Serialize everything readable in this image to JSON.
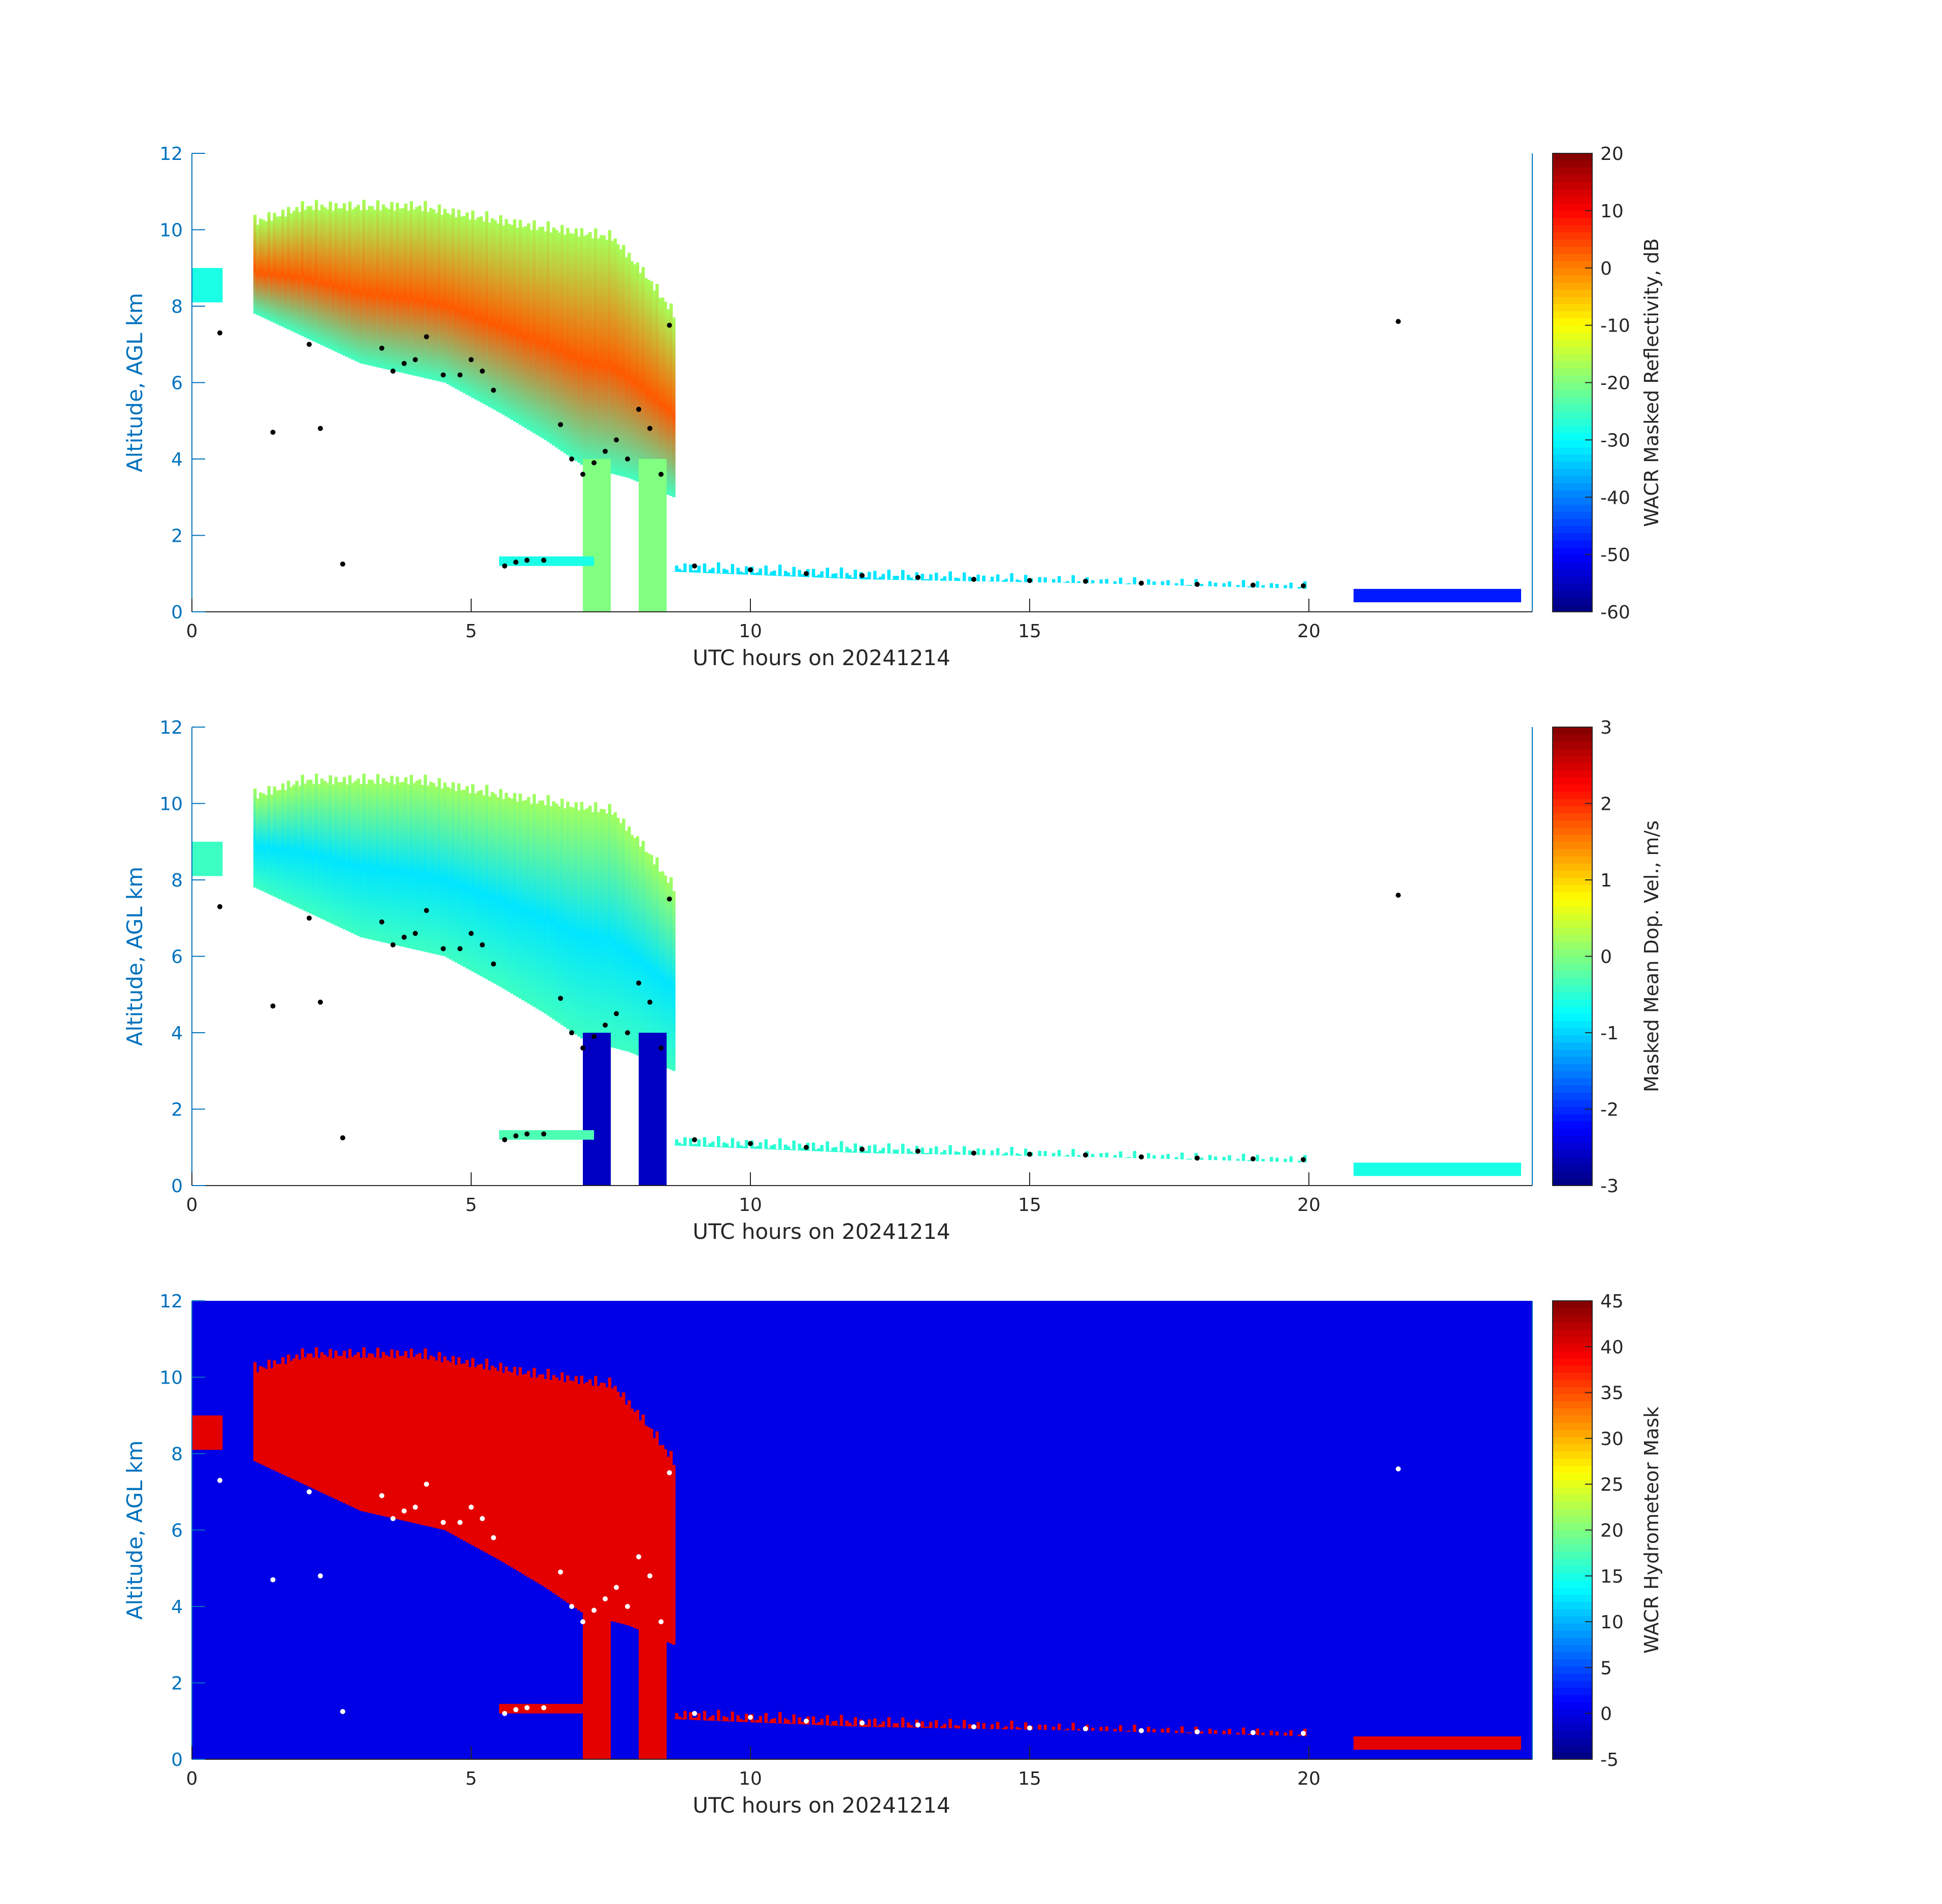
{
  "page": {
    "background": "#ffffff"
  },
  "chart_data": [
    {
      "type": "heatmap",
      "id": "panel-reflectivity",
      "xlabel": "UTC hours on 20241214",
      "ylabel": "Altitude, AGL km",
      "xlim": [
        0,
        24
      ],
      "ylim": [
        0,
        12
      ],
      "xticks": [
        0,
        5,
        10,
        15,
        20
      ],
      "yticks": [
        0,
        2,
        4,
        6,
        8,
        10,
        12
      ],
      "grid": false,
      "axis_color": "#0072bd",
      "colorbar": {
        "label": "WACR Masked Reflectivity, dB",
        "range": [
          -60,
          20
        ],
        "ticks": [
          -60,
          -50,
          -40,
          -30,
          -20,
          -10,
          0,
          10,
          20
        ],
        "colormap": "jet"
      },
      "background_value": null,
      "signal_regions": [
        {
          "x": [
            0.0,
            0.55
          ],
          "base": 8.1,
          "top": 9.0,
          "value": -28
        },
        {
          "x": [
            1.1,
            8.6
          ],
          "base_profile": [
            [
              1.1,
              7.8
            ],
            [
              3.0,
              6.5
            ],
            [
              4.5,
              6.0
            ],
            [
              5.5,
              5.2
            ],
            [
              6.3,
              4.5
            ],
            [
              7.0,
              3.8
            ],
            [
              7.8,
              3.5
            ],
            [
              8.6,
              3.0
            ]
          ],
          "top_profile": [
            [
              1.1,
              10.4
            ],
            [
              2.0,
              10.8
            ],
            [
              4.0,
              10.8
            ],
            [
              6.0,
              10.3
            ],
            [
              7.5,
              10.0
            ],
            [
              8.1,
              9.0
            ],
            [
              8.6,
              8.0
            ]
          ],
          "core_value": 3
        },
        {
          "x": [
            7.0,
            7.5
          ],
          "base": 0.0,
          "top": 4.0,
          "value": -20
        },
        {
          "x": [
            8.0,
            8.5
          ],
          "base": 0.0,
          "top": 4.0,
          "value": -20
        },
        {
          "x": [
            5.5,
            7.2
          ],
          "base": 1.2,
          "top": 1.45,
          "value": -28
        },
        {
          "x": [
            8.6,
            20.0
          ],
          "base_profile": [
            [
              8.6,
              1.05
            ],
            [
              12.0,
              0.85
            ],
            [
              16.0,
              0.75
            ],
            [
              20.0,
              0.6
            ]
          ],
          "top_profile": [
            [
              8.6,
              1.35
            ],
            [
              12.0,
              1.15
            ],
            [
              16.0,
              0.95
            ],
            [
              20.0,
              0.8
            ]
          ],
          "value": -32
        },
        {
          "x": [
            20.8,
            23.8
          ],
          "base": 0.25,
          "top": 0.6,
          "value": -48
        }
      ],
      "cloud_base_points": {
        "color": "#000000",
        "x": [
          0.5,
          1.45,
          2.1,
          2.3,
          2.7,
          3.4,
          3.6,
          3.8,
          4.0,
          4.2,
          4.5,
          4.8,
          5.0,
          5.2,
          5.4,
          5.6,
          5.8,
          6.0,
          6.3,
          6.6,
          6.8,
          7.0,
          7.2,
          7.4,
          7.6,
          7.8,
          8.0,
          8.2,
          8.4,
          8.55,
          9.0,
          10.0,
          11.0,
          12.0,
          13.0,
          14.0,
          15.0,
          16.0,
          17.0,
          18.0,
          19.0,
          19.9,
          21.6
        ],
        "y": [
          7.3,
          4.7,
          7.0,
          4.8,
          1.25,
          6.9,
          6.3,
          6.5,
          6.6,
          7.2,
          6.2,
          6.2,
          6.6,
          6.3,
          5.8,
          1.2,
          1.3,
          1.35,
          1.35,
          4.9,
          4.0,
          3.6,
          3.9,
          4.2,
          4.5,
          4.0,
          5.3,
          4.8,
          3.6,
          7.5,
          1.2,
          1.1,
          1.0,
          0.95,
          0.9,
          0.85,
          0.82,
          0.8,
          0.75,
          0.72,
          0.7,
          0.68,
          7.6
        ]
      }
    },
    {
      "type": "heatmap",
      "id": "panel-velocity",
      "xlabel": "UTC hours on 20241214",
      "ylabel": "Altitude, AGL km",
      "xlim": [
        0,
        24
      ],
      "ylim": [
        0,
        12
      ],
      "xticks": [
        0,
        5,
        10,
        15,
        20
      ],
      "yticks": [
        0,
        2,
        4,
        6,
        8,
        10,
        12
      ],
      "grid": false,
      "axis_color": "#0072bd",
      "colorbar": {
        "label": "Masked Mean Dop. Vel., m/s",
        "range": [
          -3,
          3
        ],
        "ticks": [
          -3,
          -2,
          -1,
          0,
          1,
          2,
          3
        ],
        "colormap": "jet"
      },
      "background_value": null,
      "signal_regions": [
        {
          "x": [
            0.0,
            0.55
          ],
          "base": 8.1,
          "top": 9.0,
          "value": -0.4
        },
        {
          "x": [
            1.1,
            8.6
          ],
          "base_profile": [
            [
              1.1,
              7.8
            ],
            [
              3.0,
              6.5
            ],
            [
              4.5,
              6.0
            ],
            [
              5.5,
              5.2
            ],
            [
              6.3,
              4.5
            ],
            [
              7.0,
              3.8
            ],
            [
              7.8,
              3.5
            ],
            [
              8.6,
              3.0
            ]
          ],
          "top_profile": [
            [
              1.1,
              10.4
            ],
            [
              2.0,
              10.8
            ],
            [
              4.0,
              10.8
            ],
            [
              6.0,
              10.3
            ],
            [
              7.5,
              10.0
            ],
            [
              8.1,
              9.0
            ],
            [
              8.6,
              8.0
            ]
          ],
          "core_value": -0.9
        },
        {
          "x": [
            7.0,
            7.5
          ],
          "base": 0.0,
          "top": 4.0,
          "value": -2.6
        },
        {
          "x": [
            8.0,
            8.5
          ],
          "base": 0.0,
          "top": 4.0,
          "value": -2.6
        },
        {
          "x": [
            5.5,
            7.2
          ],
          "base": 1.2,
          "top": 1.45,
          "value": -0.3
        },
        {
          "x": [
            8.6,
            20.0
          ],
          "base_profile": [
            [
              8.6,
              1.05
            ],
            [
              12.0,
              0.85
            ],
            [
              16.0,
              0.75
            ],
            [
              20.0,
              0.6
            ]
          ],
          "top_profile": [
            [
              8.6,
              1.35
            ],
            [
              12.0,
              1.15
            ],
            [
              16.0,
              0.95
            ],
            [
              20.0,
              0.8
            ]
          ],
          "value": -0.5
        },
        {
          "x": [
            20.8,
            23.8
          ],
          "base": 0.25,
          "top": 0.6,
          "value": -0.6
        }
      ],
      "cloud_base_points": {
        "color": "#000000",
        "x": [
          0.5,
          1.45,
          2.1,
          2.3,
          2.7,
          3.4,
          3.6,
          3.8,
          4.0,
          4.2,
          4.5,
          4.8,
          5.0,
          5.2,
          5.4,
          5.6,
          5.8,
          6.0,
          6.3,
          6.6,
          6.8,
          7.0,
          7.2,
          7.4,
          7.6,
          7.8,
          8.0,
          8.2,
          8.4,
          8.55,
          9.0,
          10.0,
          11.0,
          12.0,
          13.0,
          14.0,
          15.0,
          16.0,
          17.0,
          18.0,
          19.0,
          19.9,
          21.6
        ],
        "y": [
          7.3,
          4.7,
          7.0,
          4.8,
          1.25,
          6.9,
          6.3,
          6.5,
          6.6,
          7.2,
          6.2,
          6.2,
          6.6,
          6.3,
          5.8,
          1.2,
          1.3,
          1.35,
          1.35,
          4.9,
          4.0,
          3.6,
          3.9,
          4.2,
          4.5,
          4.0,
          5.3,
          4.8,
          3.6,
          7.5,
          1.2,
          1.1,
          1.0,
          0.95,
          0.9,
          0.85,
          0.82,
          0.8,
          0.75,
          0.72,
          0.7,
          0.68,
          7.6
        ]
      }
    },
    {
      "type": "heatmap",
      "id": "panel-mask",
      "xlabel": "UTC hours on 20241214",
      "ylabel": "Altitude, AGL km",
      "xlim": [
        0,
        24
      ],
      "ylim": [
        0,
        12
      ],
      "xticks": [
        0,
        5,
        10,
        15,
        20
      ],
      "yticks": [
        0,
        2,
        4,
        6,
        8,
        10,
        12
      ],
      "grid": false,
      "axis_color": "#0072bd",
      "colorbar": {
        "label": "WACR Hydrometeor Mask",
        "range": [
          -5,
          45
        ],
        "ticks": [
          -5,
          0,
          5,
          10,
          15,
          20,
          25,
          30,
          35,
          40,
          45
        ],
        "colormap": "jet"
      },
      "background_value": 0,
      "signal_regions": [
        {
          "x": [
            0.0,
            0.55
          ],
          "base": 8.1,
          "top": 9.0,
          "value": 40
        },
        {
          "x": [
            1.1,
            8.6
          ],
          "base_profile": [
            [
              1.1,
              7.8
            ],
            [
              3.0,
              6.5
            ],
            [
              4.5,
              6.0
            ],
            [
              5.5,
              5.2
            ],
            [
              6.3,
              4.5
            ],
            [
              7.0,
              3.8
            ],
            [
              7.8,
              3.5
            ],
            [
              8.6,
              3.0
            ]
          ],
          "top_profile": [
            [
              1.1,
              10.4
            ],
            [
              2.0,
              10.8
            ],
            [
              4.0,
              10.8
            ],
            [
              6.0,
              10.3
            ],
            [
              7.5,
              10.0
            ],
            [
              8.1,
              9.0
            ],
            [
              8.6,
              8.0
            ]
          ],
          "core_value": 40
        },
        {
          "x": [
            7.0,
            7.5
          ],
          "base": 0.0,
          "top": 4.0,
          "value": 40
        },
        {
          "x": [
            8.0,
            8.5
          ],
          "base": 0.0,
          "top": 4.0,
          "value": 40
        },
        {
          "x": [
            5.5,
            7.2
          ],
          "base": 1.2,
          "top": 1.45,
          "value": 40
        },
        {
          "x": [
            8.6,
            20.0
          ],
          "base_profile": [
            [
              8.6,
              1.05
            ],
            [
              12.0,
              0.85
            ],
            [
              16.0,
              0.75
            ],
            [
              20.0,
              0.6
            ]
          ],
          "top_profile": [
            [
              8.6,
              1.35
            ],
            [
              12.0,
              1.15
            ],
            [
              16.0,
              0.95
            ],
            [
              20.0,
              0.8
            ]
          ],
          "value": 40
        },
        {
          "x": [
            20.8,
            23.8
          ],
          "base": 0.25,
          "top": 0.6,
          "value": 40
        }
      ],
      "cloud_base_points": {
        "color": "#ffffff",
        "x": [
          0.5,
          1.45,
          2.1,
          2.3,
          2.7,
          3.4,
          3.6,
          3.8,
          4.0,
          4.2,
          4.5,
          4.8,
          5.0,
          5.2,
          5.4,
          5.6,
          5.8,
          6.0,
          6.3,
          6.6,
          6.8,
          7.0,
          7.2,
          7.4,
          7.6,
          7.8,
          8.0,
          8.2,
          8.4,
          8.55,
          9.0,
          10.0,
          11.0,
          12.0,
          13.0,
          14.0,
          15.0,
          16.0,
          17.0,
          18.0,
          19.0,
          19.9,
          21.6
        ],
        "y": [
          7.3,
          4.7,
          7.0,
          4.8,
          1.25,
          6.9,
          6.3,
          6.5,
          6.6,
          7.2,
          6.2,
          6.2,
          6.6,
          6.3,
          5.8,
          1.2,
          1.3,
          1.35,
          1.35,
          4.9,
          4.0,
          3.6,
          3.9,
          4.2,
          4.5,
          4.0,
          5.3,
          4.8,
          3.6,
          7.5,
          1.2,
          1.1,
          1.0,
          0.95,
          0.9,
          0.85,
          0.82,
          0.8,
          0.75,
          0.72,
          0.7,
          0.68,
          7.6
        ]
      }
    }
  ]
}
